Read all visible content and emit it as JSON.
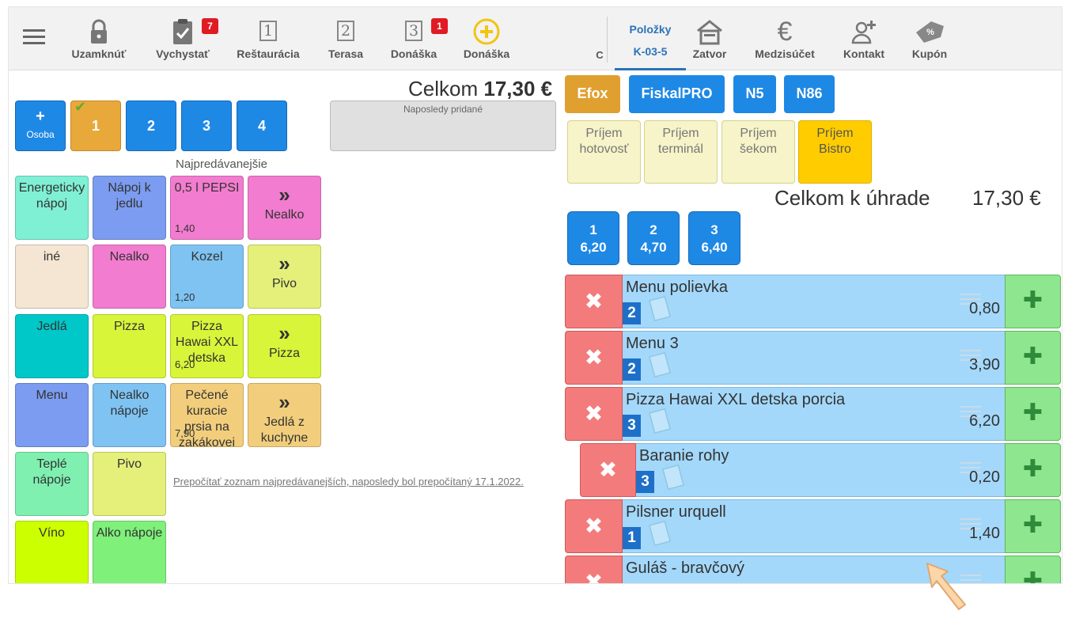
{
  "topbar": {
    "lock_label": "Uzamknúť",
    "prepare_label": "Vychystať",
    "prepare_badge": "7",
    "restaurant_label": "Reštaurácia",
    "restaurant_num": "1",
    "terrace_label": "Terasa",
    "terrace_num": "2",
    "delivery_label": "Donáška",
    "delivery_num": "3",
    "delivery_badge": "1",
    "new_delivery_label": "Donáška",
    "cut_label": "C",
    "items_tab_title": "Položky",
    "items_tab_code": "K-03-5",
    "close_label": "Zatvor",
    "subtotal_label": "Medzisúčet",
    "contact_label": "Kontakt",
    "coupon_label": "Kupón"
  },
  "left": {
    "total_label": "Celkom",
    "total_value": "17,30 €",
    "add_person_plus": "+",
    "add_person_label": "Osoba",
    "persons": [
      "1",
      "2",
      "3",
      "4"
    ],
    "recent_label": "Naposledy pridané",
    "top_sellers_label": "Najpredávanejšie",
    "recalc_link": "Prepočítať zoznam najpredávanejších, naposledy bol prepočítaný 17.1.2022."
  },
  "tiles": {
    "energy": "Energeticky nápoj",
    "meal_drink": "Nápoj k jedlu",
    "pepsi": "0,5 l PEPSI",
    "pepsi_price": "1,40",
    "nealko_nav": "Nealko",
    "ine": "iné",
    "nealko": "Nealko",
    "kozel": "Kozel",
    "kozel_price": "1,20",
    "pivo_nav": "Pivo",
    "jedla": "Jedlá",
    "pizza": "Pizza",
    "pizza_hawai": "Pizza Hawai XXL detska",
    "pizza_hawai_price": "6,20",
    "pizza_nav": "Pizza",
    "menu": "Menu",
    "nealko_napoje": "Nealko nápoje",
    "kurca": "Pečené kuracie prsia na zakákovei",
    "kurca_price": "7,90",
    "jedla_nav": "Jedlá z kuchyne",
    "teple": "Teplé nápoje",
    "pivo": "Pivo",
    "vino": "Víno",
    "alko": "Alko nápoje",
    "arrows": "»"
  },
  "right": {
    "efox": "Efox",
    "fiskalpro": "FiskalPRO",
    "n5": "N5",
    "n86": "N86",
    "receive_cash": "Príjem hotovosť",
    "receive_terminal": "Príjem terminál",
    "receive_cheque": "Príjem šekom",
    "receive_bistro": "Príjem Bistro",
    "due_label": "Celkom k úhrade",
    "due_value": "17,30 €",
    "splits": [
      {
        "n": "1",
        "v": "6,20"
      },
      {
        "n": "2",
        "v": "4,70"
      },
      {
        "n": "3",
        "v": "6,40"
      }
    ]
  },
  "order_items": [
    {
      "name": "Menu polievka",
      "qty": "2",
      "price": "0,80"
    },
    {
      "name": "Menu 3",
      "qty": "2",
      "price": "3,90"
    },
    {
      "name": "Pizza Hawai XXL detska porcia",
      "qty": "3",
      "price": "6,20"
    },
    {
      "name": "Baranie rohy",
      "qty": "3",
      "price": "0,20"
    },
    {
      "name": "Pilsner urquell",
      "qty": "1",
      "price": "1,40"
    },
    {
      "name": "Guláš - bravčový",
      "qty": "",
      "price": ""
    }
  ],
  "colors": {
    "primary_blue": "#1e88e5",
    "person_selected": "#e8a93a",
    "efox_orange": "#e0a030",
    "bistro_yellow": "#ffcc00",
    "item_bg": "#a3d8fb",
    "delete_red": "#f47b7b",
    "add_green": "#8ee68e",
    "badge_red": "#e01b24"
  },
  "icons": [
    "menu-icon",
    "lock-icon",
    "clipboard-check-icon",
    "plus-circle-icon",
    "house-icon",
    "euro-icon",
    "add-contact-icon",
    "coupon-icon",
    "close-x-icon",
    "plus-icon",
    "drag-handle-icon",
    "note-icon",
    "checkmark-icon",
    "cursor-hand-icon"
  ]
}
